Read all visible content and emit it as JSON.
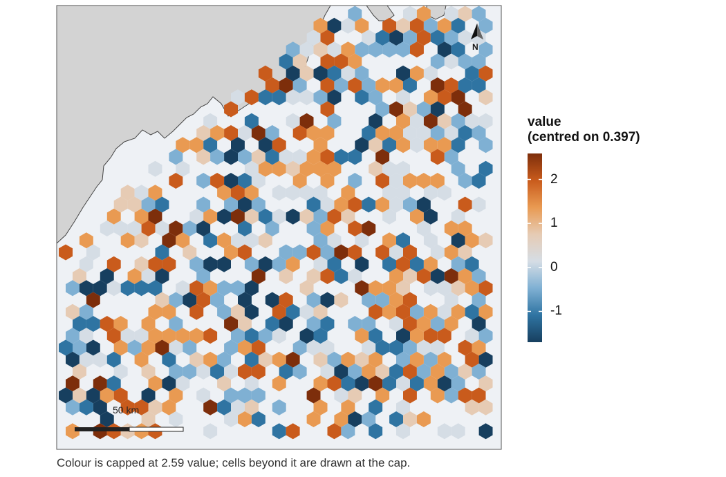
{
  "legend": {
    "title_line1": "value",
    "title_line2": "(centred on 0.397)",
    "ticks": [
      {
        "label": "2",
        "value": 2
      },
      {
        "label": "1",
        "value": 1
      },
      {
        "label": "0",
        "value": 0
      },
      {
        "label": "-1",
        "value": -1
      }
    ],
    "range": [
      -1.7,
      2.59
    ],
    "colors": [
      "#173f5f",
      "#2f74a2",
      "#7fb0d3",
      "#d5dde5",
      "#e6cbb4",
      "#e99a52",
      "#c95b1c",
      "#7d2e0b"
    ]
  },
  "caption": "Colour is capped at 2.59 value; cells beyond it are drawn at the cap.",
  "north_arrow": {
    "label": "N"
  },
  "scale_bar": {
    "label": "50 km"
  },
  "colors": {
    "land": "#d3d3d3",
    "sea": "#eef1f5",
    "frame": "#555555"
  }
}
